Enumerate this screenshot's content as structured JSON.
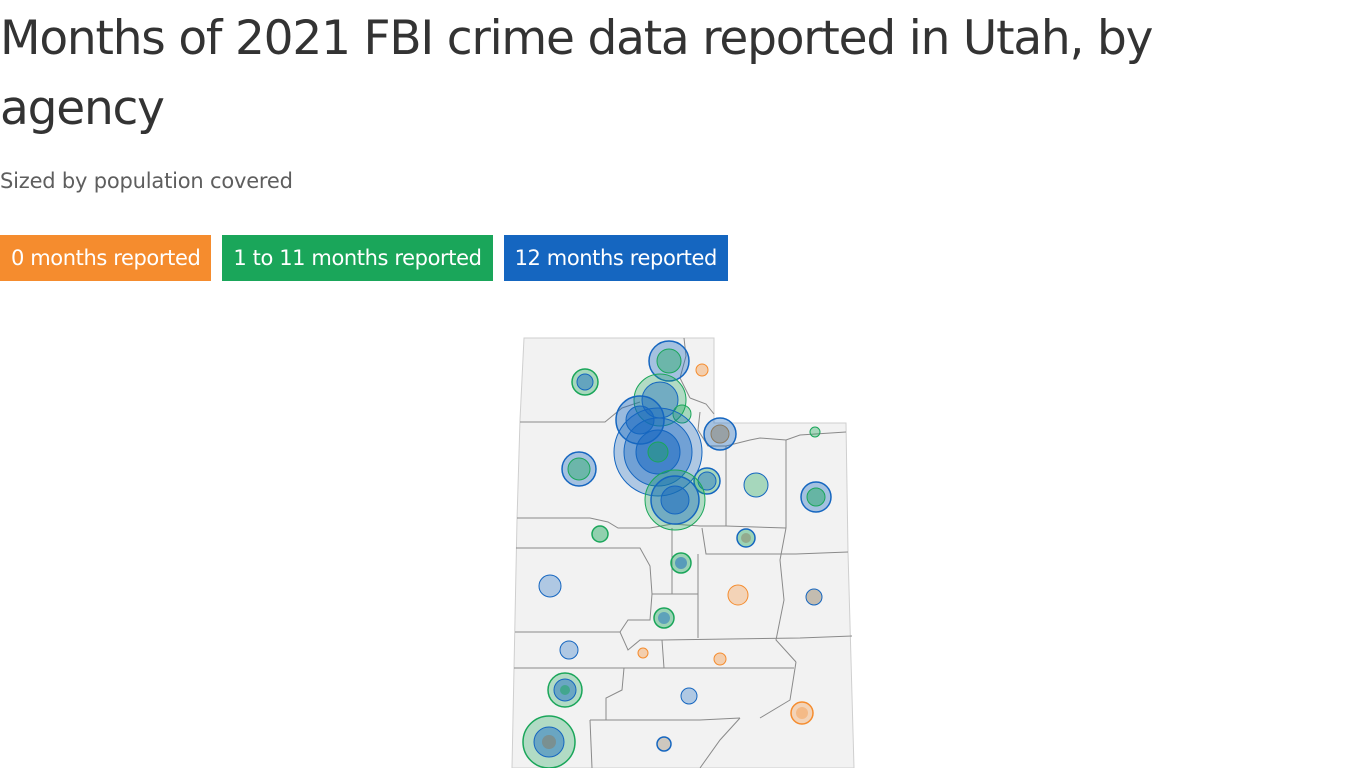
{
  "title": "Months of 2021 FBI crime data reported in Utah, by agency",
  "subtitle": "Sized by population covered",
  "colors": {
    "zero": "#f58c2e",
    "partial": "#1aa65a",
    "full": "#1566c0",
    "land": "#f2f2f2",
    "county_border": "#8a8a8a",
    "text": "#333333"
  },
  "legend": [
    {
      "key": "zero",
      "label": "0 months reported"
    },
    {
      "key": "partial",
      "label": "1 to 11 months reported"
    },
    {
      "key": "full",
      "label": "12 months reported"
    }
  ]
}
